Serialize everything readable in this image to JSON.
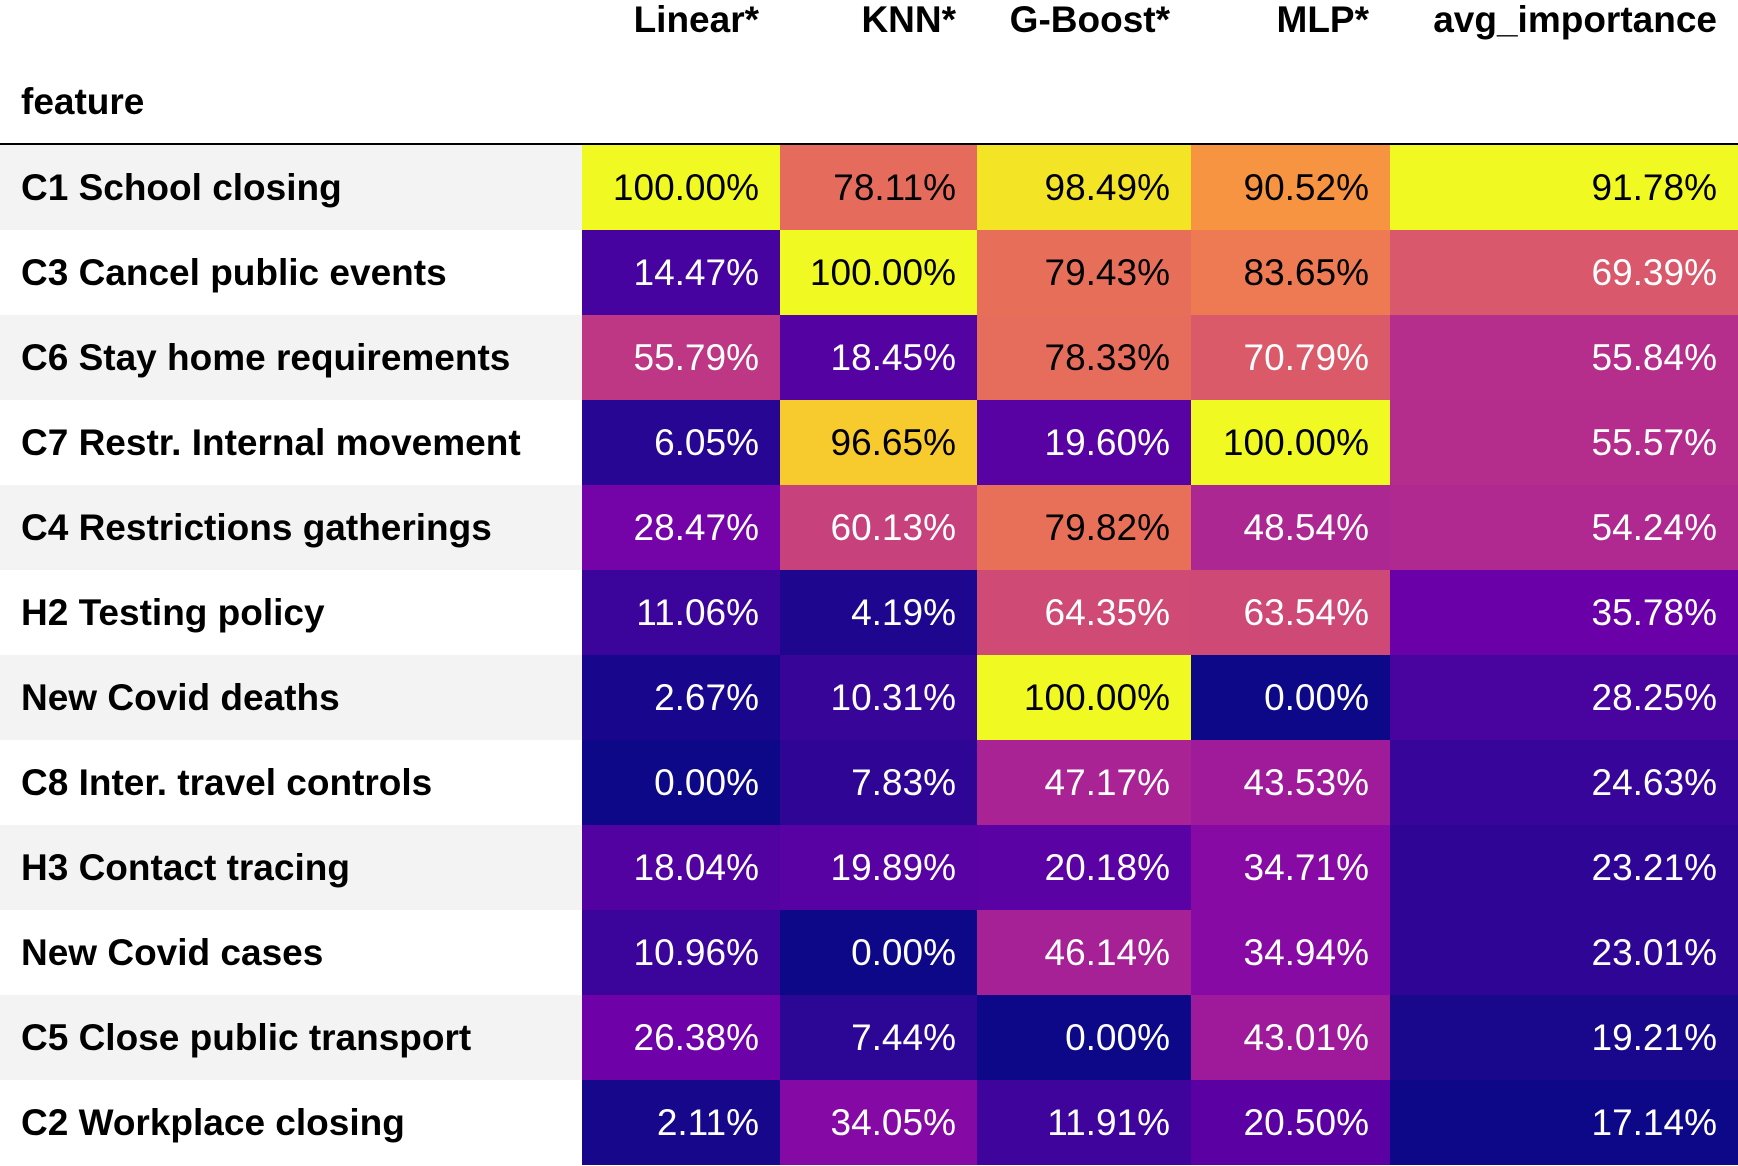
{
  "chart_data": {
    "type": "heatmap",
    "index_label": "feature",
    "columns": [
      "Linear*",
      "KNN*",
      "G-Boost*",
      "MLP*",
      "avg_importance"
    ],
    "value_format": "percent",
    "colormap": "plasma",
    "zebra_colors": [
      "#f3f3f3",
      "#ffffff"
    ],
    "rows": [
      {
        "feature": "C1 School closing",
        "values": [
          100.0,
          78.11,
          98.49,
          90.52,
          91.78
        ]
      },
      {
        "feature": "C3 Cancel public events",
        "values": [
          14.47,
          100.0,
          79.43,
          83.65,
          69.39
        ]
      },
      {
        "feature": "C6 Stay home requirements",
        "values": [
          55.79,
          18.45,
          78.33,
          70.79,
          55.84
        ]
      },
      {
        "feature": "C7 Restr. Internal movement",
        "values": [
          6.05,
          96.65,
          19.6,
          100.0,
          55.57
        ]
      },
      {
        "feature": "C4 Restrictions gatherings",
        "values": [
          28.47,
          60.13,
          79.82,
          48.54,
          54.24
        ]
      },
      {
        "feature": "H2 Testing policy",
        "values": [
          11.06,
          4.19,
          64.35,
          63.54,
          35.78
        ]
      },
      {
        "feature": "New Covid deaths",
        "values": [
          2.67,
          10.31,
          100.0,
          0.0,
          28.25
        ]
      },
      {
        "feature": "C8 Inter. travel controls",
        "values": [
          0.0,
          7.83,
          47.17,
          43.53,
          24.63
        ]
      },
      {
        "feature": "H3 Contact tracing",
        "values": [
          18.04,
          19.89,
          20.18,
          34.71,
          23.21
        ]
      },
      {
        "feature": "New Covid cases",
        "values": [
          10.96,
          0.0,
          46.14,
          34.94,
          23.01
        ]
      },
      {
        "feature": "C5 Close public transport",
        "values": [
          26.38,
          7.44,
          0.0,
          43.01,
          19.21
        ]
      },
      {
        "feature": "C2 Workplace closing",
        "values": [
          2.11,
          34.05,
          11.91,
          20.5,
          17.14
        ]
      }
    ]
  }
}
